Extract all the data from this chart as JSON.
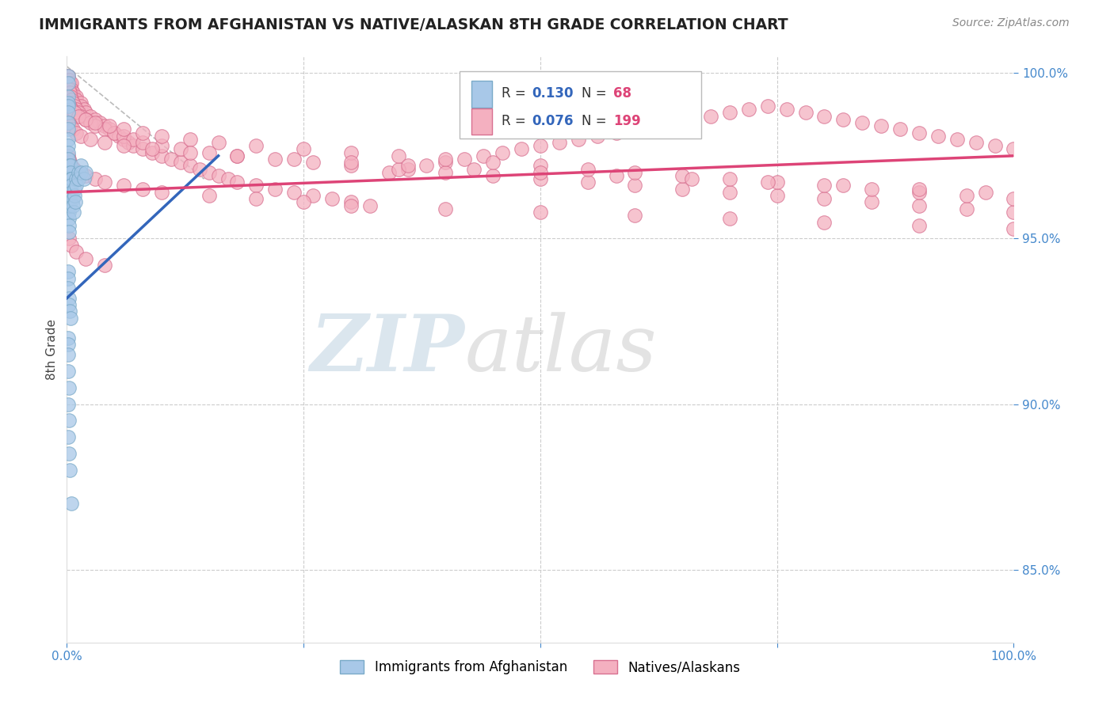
{
  "title": "IMMIGRANTS FROM AFGHANISTAN VS NATIVE/ALASKAN 8TH GRADE CORRELATION CHART",
  "source": "Source: ZipAtlas.com",
  "ylabel": "8th Grade",
  "ytick_labels": [
    "85.0%",
    "90.0%",
    "95.0%",
    "100.0%"
  ],
  "ytick_values": [
    0.85,
    0.9,
    0.95,
    1.0
  ],
  "blue_color": "#a8c8e8",
  "pink_color": "#f4b0c0",
  "blue_edge": "#7aaac8",
  "pink_edge": "#d87090",
  "blue_scatter_x": [
    0.001,
    0.001,
    0.001,
    0.001,
    0.001,
    0.001,
    0.001,
    0.001,
    0.001,
    0.001,
    0.001,
    0.001,
    0.002,
    0.002,
    0.002,
    0.002,
    0.002,
    0.002,
    0.002,
    0.002,
    0.002,
    0.002,
    0.002,
    0.003,
    0.003,
    0.003,
    0.003,
    0.003,
    0.003,
    0.004,
    0.004,
    0.004,
    0.004,
    0.005,
    0.005,
    0.005,
    0.006,
    0.006,
    0.007,
    0.008,
    0.008,
    0.009,
    0.01,
    0.01,
    0.012,
    0.012,
    0.015,
    0.015,
    0.018,
    0.02,
    0.001,
    0.001,
    0.001,
    0.002,
    0.002,
    0.003,
    0.004,
    0.001,
    0.001,
    0.001,
    0.001,
    0.002,
    0.001,
    0.002,
    0.001,
    0.002,
    0.003,
    0.005
  ],
  "blue_scatter_y": [
    0.999,
    0.997,
    0.993,
    0.991,
    0.99,
    0.988,
    0.985,
    0.983,
    0.98,
    0.978,
    0.976,
    0.974,
    0.972,
    0.97,
    0.968,
    0.966,
    0.964,
    0.962,
    0.96,
    0.958,
    0.956,
    0.954,
    0.952,
    0.97,
    0.968,
    0.966,
    0.964,
    0.962,
    0.96,
    0.972,
    0.97,
    0.968,
    0.966,
    0.968,
    0.966,
    0.964,
    0.962,
    0.96,
    0.958,
    0.965,
    0.963,
    0.961,
    0.968,
    0.966,
    0.97,
    0.968,
    0.972,
    0.97,
    0.968,
    0.97,
    0.94,
    0.938,
    0.935,
    0.932,
    0.93,
    0.928,
    0.926,
    0.92,
    0.918,
    0.915,
    0.91,
    0.905,
    0.9,
    0.895,
    0.89,
    0.885,
    0.88,
    0.87
  ],
  "pink_scatter_x": [
    0.001,
    0.001,
    0.002,
    0.002,
    0.003,
    0.003,
    0.004,
    0.005,
    0.005,
    0.006,
    0.007,
    0.008,
    0.009,
    0.01,
    0.01,
    0.012,
    0.012,
    0.015,
    0.015,
    0.018,
    0.02,
    0.025,
    0.03,
    0.035,
    0.04,
    0.045,
    0.05,
    0.055,
    0.06,
    0.065,
    0.07,
    0.08,
    0.09,
    0.1,
    0.11,
    0.12,
    0.13,
    0.14,
    0.15,
    0.16,
    0.17,
    0.18,
    0.2,
    0.22,
    0.24,
    0.26,
    0.28,
    0.3,
    0.32,
    0.34,
    0.36,
    0.38,
    0.4,
    0.42,
    0.44,
    0.46,
    0.48,
    0.5,
    0.52,
    0.54,
    0.56,
    0.58,
    0.6,
    0.62,
    0.64,
    0.66,
    0.68,
    0.7,
    0.72,
    0.74,
    0.76,
    0.78,
    0.8,
    0.82,
    0.84,
    0.86,
    0.88,
    0.9,
    0.92,
    0.94,
    0.96,
    0.98,
    1.0,
    0.002,
    0.003,
    0.004,
    0.005,
    0.006,
    0.008,
    0.01,
    0.012,
    0.015,
    0.02,
    0.025,
    0.03,
    0.04,
    0.05,
    0.06,
    0.07,
    0.08,
    0.1,
    0.12,
    0.15,
    0.18,
    0.22,
    0.26,
    0.3,
    0.35,
    0.4,
    0.45,
    0.5,
    0.55,
    0.6,
    0.65,
    0.7,
    0.75,
    0.8,
    0.85,
    0.9,
    0.95,
    1.0,
    0.003,
    0.005,
    0.008,
    0.012,
    0.02,
    0.03,
    0.045,
    0.06,
    0.08,
    0.1,
    0.13,
    0.16,
    0.2,
    0.25,
    0.3,
    0.35,
    0.4,
    0.45,
    0.5,
    0.55,
    0.6,
    0.65,
    0.7,
    0.75,
    0.8,
    0.85,
    0.9,
    0.95,
    1.0,
    0.001,
    0.002,
    0.003,
    0.005,
    0.008,
    0.012,
    0.02,
    0.03,
    0.04,
    0.06,
    0.08,
    0.1,
    0.15,
    0.2,
    0.25,
    0.3,
    0.4,
    0.5,
    0.6,
    0.7,
    0.8,
    0.9,
    1.0,
    0.002,
    0.004,
    0.006,
    0.01,
    0.015,
    0.025,
    0.04,
    0.06,
    0.09,
    0.13,
    0.18,
    0.24,
    0.3,
    0.36,
    0.43,
    0.5,
    0.58,
    0.66,
    0.74,
    0.82,
    0.9,
    0.97,
    0.002,
    0.005,
    0.01,
    0.02,
    0.04
  ],
  "pink_scatter_y": [
    0.999,
    0.997,
    0.998,
    0.996,
    0.997,
    0.995,
    0.996,
    0.997,
    0.995,
    0.994,
    0.993,
    0.992,
    0.991,
    0.993,
    0.992,
    0.99,
    0.989,
    0.991,
    0.99,
    0.989,
    0.988,
    0.987,
    0.986,
    0.985,
    0.984,
    0.983,
    0.982,
    0.981,
    0.98,
    0.979,
    0.978,
    0.977,
    0.976,
    0.975,
    0.974,
    0.973,
    0.972,
    0.971,
    0.97,
    0.969,
    0.968,
    0.967,
    0.966,
    0.965,
    0.964,
    0.963,
    0.962,
    0.961,
    0.96,
    0.97,
    0.971,
    0.972,
    0.973,
    0.974,
    0.975,
    0.976,
    0.977,
    0.978,
    0.979,
    0.98,
    0.981,
    0.982,
    0.983,
    0.984,
    0.985,
    0.986,
    0.987,
    0.988,
    0.989,
    0.99,
    0.989,
    0.988,
    0.987,
    0.986,
    0.985,
    0.984,
    0.983,
    0.982,
    0.981,
    0.98,
    0.979,
    0.978,
    0.977,
    0.995,
    0.994,
    0.993,
    0.992,
    0.991,
    0.99,
    0.989,
    0.988,
    0.987,
    0.986,
    0.985,
    0.984,
    0.983,
    0.982,
    0.981,
    0.98,
    0.979,
    0.978,
    0.977,
    0.976,
    0.975,
    0.974,
    0.973,
    0.972,
    0.971,
    0.97,
    0.969,
    0.968,
    0.967,
    0.966,
    0.965,
    0.964,
    0.963,
    0.962,
    0.961,
    0.96,
    0.959,
    0.958,
    0.99,
    0.989,
    0.988,
    0.987,
    0.986,
    0.985,
    0.984,
    0.983,
    0.982,
    0.981,
    0.98,
    0.979,
    0.978,
    0.977,
    0.976,
    0.975,
    0.974,
    0.973,
    0.972,
    0.971,
    0.97,
    0.969,
    0.968,
    0.967,
    0.966,
    0.965,
    0.964,
    0.963,
    0.962,
    0.975,
    0.974,
    0.973,
    0.972,
    0.971,
    0.97,
    0.969,
    0.968,
    0.967,
    0.966,
    0.965,
    0.964,
    0.963,
    0.962,
    0.961,
    0.96,
    0.959,
    0.958,
    0.957,
    0.956,
    0.955,
    0.954,
    0.953,
    0.985,
    0.984,
    0.983,
    0.982,
    0.981,
    0.98,
    0.979,
    0.978,
    0.977,
    0.976,
    0.975,
    0.974,
    0.973,
    0.972,
    0.971,
    0.97,
    0.969,
    0.968,
    0.967,
    0.966,
    0.965,
    0.964,
    0.95,
    0.948,
    0.946,
    0.944,
    0.942
  ],
  "xlim": [
    0.0,
    1.0
  ],
  "ylim": [
    0.828,
    1.005
  ],
  "blue_trend_x": [
    0.0,
    0.16
  ],
  "blue_trend_y": [
    0.932,
    0.975
  ],
  "pink_trend_x": [
    0.0,
    1.0
  ],
  "pink_trend_y": [
    0.964,
    0.975
  ],
  "diag_line_x": [
    0.0,
    0.145
  ],
  "diag_line_y": [
    1.002,
    0.968
  ],
  "watermark_zip": "ZIP",
  "watermark_atlas": "atlas",
  "background_color": "#ffffff",
  "grid_color": "#cccccc",
  "blue_trend_color": "#3366bb",
  "pink_trend_color": "#dd4477",
  "diag_color": "#bbbbbb",
  "title_color": "#222222",
  "source_color": "#888888",
  "tick_color": "#4488cc",
  "ylabel_color": "#444444"
}
